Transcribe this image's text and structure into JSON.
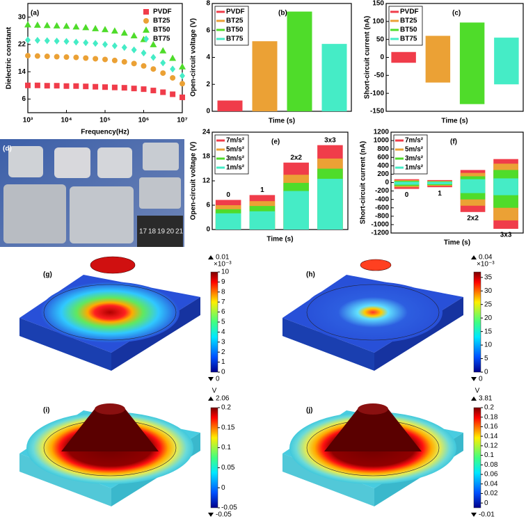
{
  "chart_data": [
    {
      "label": "(a)",
      "type": "scatter",
      "xscale": "log",
      "ylabel": "Dielectric constant",
      "xlabel": "Frequency(Hz)",
      "xlim": [
        1000,
        10000000
      ],
      "xticks": [
        {
          "value": 1000,
          "label": "10³"
        },
        {
          "value": 10000,
          "label": "10⁴"
        },
        {
          "value": 100000,
          "label": "10⁵"
        },
        {
          "value": 1000000,
          "label": "10⁶"
        },
        {
          "value": 10000000,
          "label": "10⁷"
        }
      ],
      "ylim": [
        2,
        34
      ],
      "yticks": [
        6,
        14,
        22,
        30
      ],
      "legend": "top-right",
      "x": [
        1000,
        1778,
        3162,
        5623,
        10000,
        17783,
        31623,
        56234,
        100000,
        177828,
        316228,
        562341,
        1000000,
        1778279,
        3162278,
        5623413,
        10000000
      ],
      "series": [
        {
          "name": "PVDF",
          "color": "#f03c4a",
          "marker": "square",
          "values": [
            10.0,
            10.0,
            9.9,
            9.9,
            9.8,
            9.8,
            9.7,
            9.6,
            9.5,
            9.4,
            9.3,
            9.1,
            8.9,
            8.5,
            8.0,
            7.4,
            6.5
          ]
        },
        {
          "name": "BT25",
          "color": "#eba135",
          "marker": "circle",
          "values": [
            18.7,
            18.6,
            18.5,
            18.4,
            18.3,
            18.2,
            18.0,
            17.8,
            17.6,
            17.3,
            16.9,
            16.4,
            15.7,
            14.8,
            13.6,
            12.2,
            10.5
          ]
        },
        {
          "name": "BT50",
          "color": "#4fdc2a",
          "marker": "triangle",
          "values": [
            27.8,
            27.7,
            27.6,
            27.5,
            27.4,
            27.2,
            27.0,
            26.7,
            26.4,
            26.0,
            25.4,
            24.6,
            23.5,
            22.0,
            20.2,
            18.0,
            15.5
          ]
        },
        {
          "name": "BT75",
          "color": "#45ecc6",
          "marker": "diamond",
          "values": [
            23.3,
            23.2,
            23.1,
            23.0,
            22.9,
            22.7,
            22.5,
            22.3,
            22.0,
            21.6,
            21.1,
            20.4,
            19.5,
            18.2,
            16.6,
            14.8,
            12.8
          ]
        }
      ]
    },
    {
      "label": "(b)",
      "type": "bar",
      "ylabel": "Open-circuit voltage (V)",
      "xlabel": "Time (s)",
      "ylim": [
        0,
        8
      ],
      "yticks": [
        0,
        2,
        4,
        6,
        8
      ],
      "legend": "top-left",
      "categories": [
        "PVDF",
        "BT25",
        "BT50",
        "BT75"
      ],
      "values": [
        0.8,
        5.2,
        7.4,
        5.0
      ],
      "colors": [
        "#f03c4a",
        "#eba135",
        "#4fdc2a",
        "#45ecc6"
      ]
    },
    {
      "label": "(c)",
      "type": "range-bar",
      "ylabel": "Short-circuit current (nA)",
      "xlabel": "Time (s)",
      "ylim": [
        -150,
        150
      ],
      "yticks": [
        -150,
        -100,
        -50,
        0,
        50,
        100,
        150
      ],
      "legend": "top-left",
      "categories": [
        "PVDF",
        "BT25",
        "BT50",
        "BT75"
      ],
      "low": [
        -15,
        -70,
        -130,
        -75
      ],
      "high": [
        15,
        60,
        97,
        55
      ],
      "colors": [
        "#f03c4a",
        "#eba135",
        "#4fdc2a",
        "#45ecc6"
      ]
    },
    {
      "label": "(e)",
      "type": "overlay-bar",
      "ylabel": "Open-circuit voltage (V)",
      "xlabel": "Time (s)",
      "ylim": [
        0,
        24
      ],
      "yticks": [
        0,
        6,
        12,
        18,
        24
      ],
      "legend": "top-left",
      "categories": [
        "0",
        "1",
        "2x2",
        "3x3"
      ],
      "series": [
        {
          "name": "7m/s²",
          "color": "#f03c4a",
          "values": [
            7.3,
            8.5,
            16.5,
            20.8
          ]
        },
        {
          "name": "5m/s²",
          "color": "#eba135",
          "values": [
            6.0,
            7.0,
            13.5,
            17.5
          ]
        },
        {
          "name": "3m/s²",
          "color": "#4fdc2a",
          "values": [
            5.0,
            5.8,
            11.5,
            15.0
          ]
        },
        {
          "name": "1m/s²",
          "color": "#45ecc6",
          "values": [
            4.0,
            4.5,
            9.5,
            12.5
          ]
        }
      ]
    },
    {
      "label": "(f)",
      "type": "overlay-range",
      "ylabel": "Short-circuit current (nA)",
      "xlabel": "Time (s)",
      "ylim": [
        -1200,
        1200
      ],
      "yticks": [
        -1200,
        -1000,
        -800,
        -600,
        -400,
        -200,
        0,
        200,
        400,
        600,
        800,
        1000,
        1200
      ],
      "legend": "top-left",
      "categories": [
        "0",
        "1",
        "2x2",
        "3x3"
      ],
      "series": [
        {
          "name": "7m/s²",
          "color": "#f03c4a",
          "low": [
            -150,
            -110,
            -700,
            -1100
          ],
          "high": [
            80,
            60,
            300,
            560
          ]
        },
        {
          "name": "5m/s²",
          "color": "#eba135",
          "low": [
            -110,
            -80,
            -550,
            -900
          ],
          "high": [
            60,
            40,
            230,
            450
          ]
        },
        {
          "name": "3m/s²",
          "color": "#4fdc2a",
          "low": [
            -80,
            -60,
            -400,
            -600
          ],
          "high": [
            40,
            30,
            150,
            300
          ]
        },
        {
          "name": "1m/s²",
          "color": "#45ecc6",
          "low": [
            -50,
            -40,
            -250,
            -300
          ],
          "high": [
            20,
            20,
            80,
            100
          ]
        }
      ]
    }
  ],
  "photo": {
    "label": "(d)",
    "ruler": [
      "17",
      "18",
      "19",
      "20",
      "21"
    ]
  },
  "simulations": [
    {
      "label": "(g)",
      "max_label": "0.01",
      "exponent": "×10⁻³",
      "min_label": "0",
      "clim": [
        0,
        10
      ],
      "ticks": [
        0,
        1,
        2,
        3,
        4,
        5,
        6,
        7,
        8,
        9,
        10
      ],
      "style": "mound"
    },
    {
      "label": "(h)",
      "max_label": "0.04",
      "exponent": "×10⁻³",
      "min_label": "0",
      "clim": [
        0,
        37
      ],
      "ticks": [
        0,
        5,
        10,
        15,
        20,
        25,
        30,
        35
      ],
      "style": "mound-small"
    },
    {
      "label": "(i)",
      "unit": "V",
      "max_label": "2.06",
      "min_label": "-0.05",
      "clim": [
        -0.05,
        0.2
      ],
      "ticks": [
        -0.05,
        0,
        0.05,
        0.1,
        0.15,
        0.2
      ],
      "style": "potential"
    },
    {
      "label": "(j)",
      "unit": "V",
      "max_label": "3.81",
      "min_label": "-0.01",
      "clim": [
        -0.01,
        0.2
      ],
      "ticks": [
        0,
        0.02,
        0.04,
        0.06,
        0.08,
        0.1,
        0.12,
        0.14,
        0.16,
        0.18,
        0.2
      ],
      "style": "potential"
    }
  ]
}
